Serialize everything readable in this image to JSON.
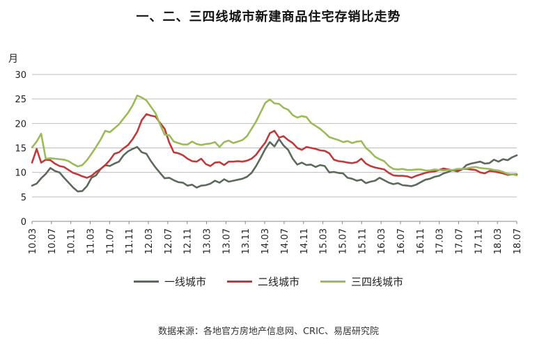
{
  "chart_data": {
    "type": "line",
    "title": "一、二、三四线城市新建商品住宅存销比走势",
    "ylabel": "月",
    "ylim": [
      0,
      30
    ],
    "yticks": [
      0,
      5,
      10,
      15,
      20,
      25,
      30
    ],
    "grid": true,
    "legend_position": "bottom",
    "x_tick_labels": [
      "10.03",
      "10.07",
      "10.11",
      "11.03",
      "11.07",
      "11.11",
      "12.03",
      "12.07",
      "12.11",
      "13.03",
      "13.07",
      "13.11",
      "14.03",
      "14.07",
      "14.11",
      "15.03",
      "15.07",
      "15.11",
      "16.03",
      "16.07",
      "16.11",
      "17.03",
      "17.07",
      "17.11",
      "18.03",
      "18.07"
    ],
    "series": [
      {
        "name": "一线城市",
        "color": "#5b6a5a",
        "values": [
          7.3,
          7.7,
          8.8,
          9.7,
          10.9,
          10.3,
          10.0,
          8.9,
          7.9,
          6.9,
          6.1,
          6.2,
          7.2,
          8.9,
          9.4,
          10.7,
          11.5,
          11.3,
          11.8,
          12.2,
          13.5,
          14.3,
          14.8,
          15.2,
          14.1,
          13.8,
          12.3,
          11.0,
          9.9,
          8.8,
          8.9,
          8.4,
          8.0,
          7.9,
          7.3,
          7.5,
          6.9,
          7.3,
          7.4,
          7.7,
          8.3,
          7.9,
          8.6,
          8.1,
          8.3,
          8.5,
          8.7,
          9.1,
          9.9,
          11.3,
          13.0,
          14.8,
          16.2,
          15.3,
          16.8,
          15.5,
          14.6,
          12.8,
          11.6,
          12.0,
          11.5,
          11.6,
          11.1,
          11.5,
          11.3,
          10.0,
          10.1,
          9.9,
          9.8,
          8.9,
          8.7,
          8.3,
          8.5,
          7.8,
          8.1,
          8.3,
          8.9,
          8.4,
          7.9,
          7.6,
          7.8,
          7.4,
          7.3,
          7.2,
          7.5,
          8.0,
          8.5,
          8.7,
          9.1,
          9.3,
          9.8,
          10.1,
          10.5,
          10.2,
          10.6,
          11.5,
          11.8,
          12.0,
          12.2,
          11.8,
          11.9,
          12.6,
          12.2,
          12.7,
          12.5,
          13.1,
          13.5
        ]
      },
      {
        "name": "二线城市",
        "color": "#c0393b",
        "values": [
          12.0,
          14.8,
          12.0,
          12.6,
          12.5,
          11.8,
          11.3,
          11.1,
          10.5,
          9.9,
          9.6,
          9.2,
          8.9,
          9.3,
          10.1,
          10.7,
          11.5,
          12.5,
          13.8,
          14.1,
          14.9,
          15.6,
          16.8,
          18.3,
          20.7,
          21.9,
          21.6,
          21.4,
          20.1,
          18.9,
          16.1,
          14.1,
          13.9,
          13.5,
          12.8,
          12.3,
          12.2,
          12.8,
          11.7,
          11.3,
          12.0,
          12.1,
          11.5,
          12.2,
          12.2,
          12.3,
          12.2,
          12.4,
          12.8,
          13.6,
          14.9,
          16.1,
          18.0,
          18.5,
          17.1,
          17.4,
          16.6,
          16.0,
          15.0,
          14.6,
          15.2,
          15.0,
          14.8,
          14.5,
          14.4,
          13.9,
          12.6,
          12.3,
          12.2,
          12.0,
          11.9,
          12.1,
          12.8,
          11.8,
          11.3,
          11.0,
          10.8,
          10.6,
          9.9,
          9.4,
          9.3,
          9.3,
          9.2,
          8.9,
          9.3,
          9.6,
          9.9,
          10.1,
          10.2,
          10.5,
          10.8,
          10.6,
          10.4,
          10.5,
          10.7,
          10.7,
          10.6,
          10.5,
          10.0,
          9.8,
          10.3,
          10.2,
          10.0,
          9.8,
          9.5,
          9.6,
          9.6
        ]
      },
      {
        "name": "三四线城市",
        "color": "#9bbb59",
        "values": [
          15.1,
          16.3,
          17.9,
          12.8,
          12.9,
          12.8,
          12.7,
          12.6,
          12.3,
          11.7,
          11.2,
          11.5,
          12.5,
          13.8,
          15.2,
          16.7,
          18.5,
          18.2,
          19.0,
          19.8,
          21.0,
          22.2,
          23.7,
          25.7,
          25.3,
          24.7,
          23.4,
          22.1,
          19.8,
          17.7,
          17.6,
          16.3,
          16.0,
          15.7,
          15.7,
          16.3,
          15.8,
          15.6,
          15.8,
          15.9,
          16.2,
          15.2,
          16.2,
          16.5,
          16.0,
          16.3,
          16.6,
          17.4,
          18.9,
          20.4,
          22.3,
          24.2,
          24.9,
          24.1,
          24.0,
          23.2,
          22.8,
          21.7,
          21.2,
          21.5,
          21.3,
          20.1,
          19.5,
          18.9,
          18.1,
          17.2,
          16.9,
          16.6,
          16.2,
          16.4,
          16.0,
          16.3,
          16.4,
          15.0,
          14.2,
          13.2,
          12.7,
          12.3,
          11.3,
          10.7,
          10.6,
          10.7,
          10.5,
          10.5,
          10.6,
          10.6,
          10.4,
          10.4,
          10.6,
          10.5,
          10.4,
          10.5,
          10.5,
          10.7,
          10.7,
          10.8,
          11.0,
          11.1,
          10.9,
          10.8,
          10.7,
          10.5,
          10.4,
          10.1,
          9.7,
          9.6,
          9.4
        ]
      }
    ]
  },
  "source": "数据来源：各地官方房地产信息网、CRIC、易居研究院"
}
